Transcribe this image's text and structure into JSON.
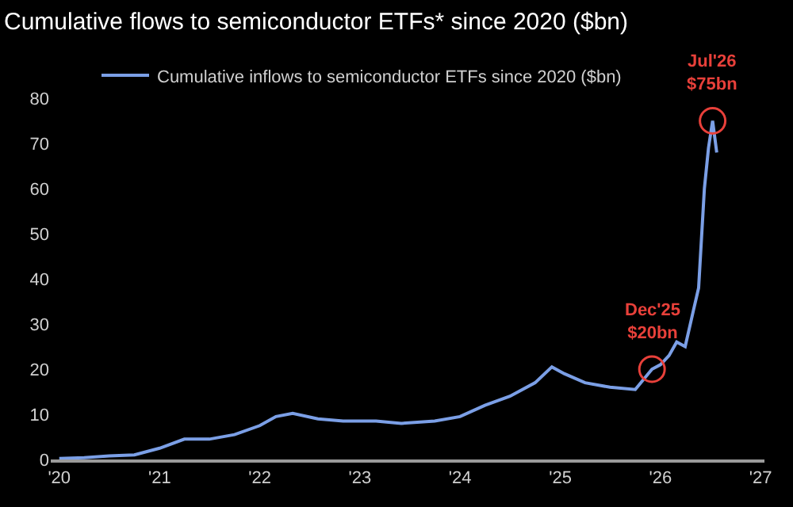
{
  "chart_data": {
    "type": "line",
    "title": "Cumulative flows to semiconductor ETFs* since 2020 ($bn)",
    "x": [
      "2020-01-01",
      "2020-04-01",
      "2020-07-01",
      "2020-10-01",
      "2021-01-01",
      "2021-04-01",
      "2021-07-01",
      "2021-10-01",
      "2022-01-01",
      "2022-03-01",
      "2022-05-01",
      "2022-08-01",
      "2022-11-01",
      "2023-03-01",
      "2023-06-01",
      "2023-10-01",
      "2024-01-01",
      "2024-04-01",
      "2024-07-01",
      "2024-10-01",
      "2024-12-01",
      "2025-01-15",
      "2025-04-01",
      "2025-07-01",
      "2025-10-01",
      "2025-12-01",
      "2026-01-01",
      "2026-02-01",
      "2026-03-01",
      "2026-04-01",
      "2026-05-01",
      "2026-05-20",
      "2026-06-10",
      "2026-06-25",
      "2026-07-10",
      "2026-07-25"
    ],
    "series": [
      {
        "name": "Cumulative inflows to semiconductor ETFs since 2020 ($bn)",
        "color": "#7b9fe6",
        "values": [
          0.2,
          0.4,
          0.8,
          1,
          2.5,
          4.5,
          4.5,
          5.5,
          7.5,
          9.5,
          10.2,
          9,
          8.5,
          8.5,
          8,
          8.5,
          9.5,
          12,
          14,
          17,
          20.5,
          19,
          17,
          16,
          15.5,
          20,
          21,
          23,
          26,
          25,
          33,
          38,
          60,
          69,
          75,
          68
        ]
      }
    ],
    "xlim": [
      "2019-12-01",
      "2027-01-15"
    ],
    "xticks": [
      {
        "value": "2020-01-01",
        "label": "'20"
      },
      {
        "value": "2021-01-01",
        "label": "'21"
      },
      {
        "value": "2022-01-01",
        "label": "'22"
      },
      {
        "value": "2023-01-01",
        "label": "'23"
      },
      {
        "value": "2024-01-01",
        "label": "'24"
      },
      {
        "value": "2025-01-01",
        "label": "'25"
      },
      {
        "value": "2026-01-01",
        "label": "'26"
      },
      {
        "value": "2027-01-01",
        "label": "'27"
      }
    ],
    "ylim": [
      0,
      80
    ],
    "yticks": [
      0,
      10,
      20,
      30,
      40,
      50,
      60,
      70,
      80
    ],
    "grid": false,
    "legend": "top",
    "annotations": [
      {
        "text": "Dec'25\n$20bn",
        "x": "2025-12-01",
        "y": 20
      },
      {
        "text": "Jul'26\n$75bn",
        "x": "2026-07-10",
        "y": 75
      }
    ]
  }
}
